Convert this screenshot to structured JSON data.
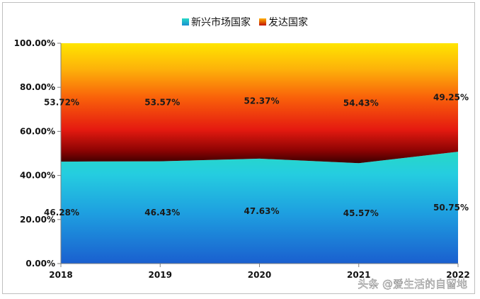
{
  "chart_data": {
    "type": "area",
    "stacked": "percent",
    "x": [
      "2018",
      "2019",
      "2020",
      "2021",
      "2022"
    ],
    "series": [
      {
        "name": "新兴市场国家",
        "values": [
          46.28,
          46.43,
          47.63,
          45.57,
          50.75
        ],
        "labels": [
          "46.28%",
          "46.43%",
          "47.63%",
          "45.57%",
          "50.75%"
        ],
        "color": "#1fb6d6"
      },
      {
        "name": "发达国家",
        "values": [
          53.72,
          53.57,
          52.37,
          54.43,
          49.25
        ],
        "labels": [
          "53.72%",
          "53.57%",
          "52.37%",
          "54.43%",
          "49.25%"
        ],
        "color": "#e03a10"
      }
    ],
    "y_ticks": [
      "0.00%",
      "20.00%",
      "40.00%",
      "60.00%",
      "80.00%",
      "100.00%"
    ],
    "ylim": [
      0,
      100
    ],
    "legend_position": "top"
  },
  "watermark": "头条 @爱生活的自留地"
}
